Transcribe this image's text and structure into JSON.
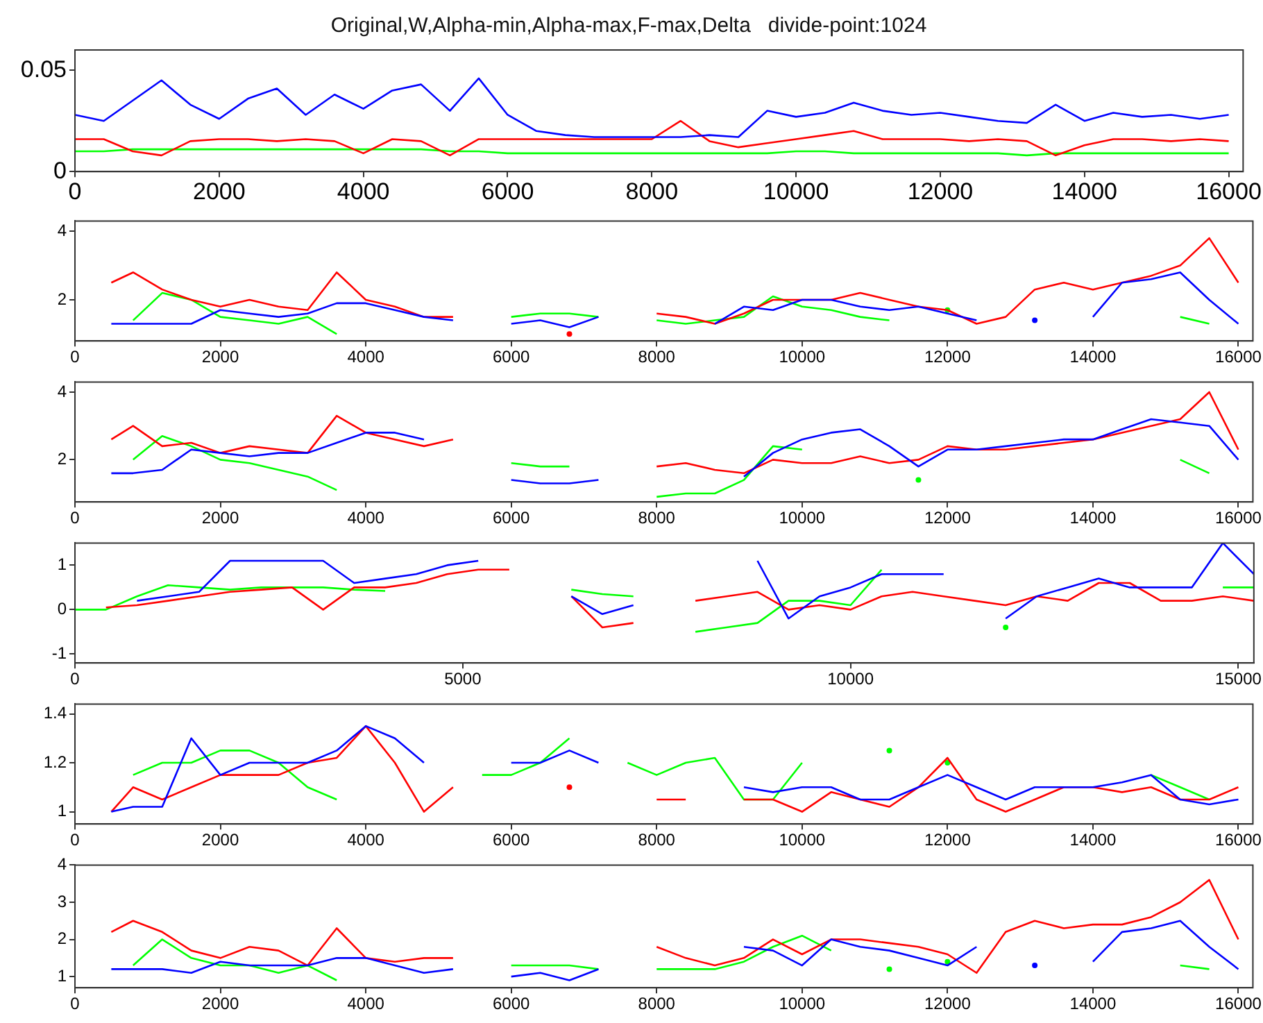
{
  "chart_data": [
    {
      "type": "line",
      "title": "Original,W,Alpha-min,Alpha-max,F-max,Delta   divide-point:1024",
      "x": [
        0,
        400,
        800,
        1200,
        1600,
        2000,
        2400,
        2800,
        3200,
        3600,
        4000,
        4400,
        4800,
        5200,
        5600,
        6000,
        6400,
        6800,
        7200,
        7600,
        8000,
        8400,
        8800,
        9200,
        9600,
        10000,
        10400,
        10800,
        11200,
        11600,
        12000,
        12400,
        12800,
        13200,
        13600,
        14000,
        14400,
        14800,
        15200,
        15600,
        16000
      ],
      "xlim": [
        0,
        16200
      ],
      "xticks": [
        0,
        2000,
        4000,
        6000,
        8000,
        10000,
        12000,
        14000,
        16000
      ],
      "ylim": [
        0,
        0.06
      ],
      "yticks": [
        0,
        0.05
      ],
      "grid": false,
      "legend": false,
      "series": [
        {
          "color": "#0000ff",
          "values": [
            0.028,
            0.025,
            0.035,
            0.045,
            0.033,
            0.026,
            0.036,
            0.041,
            0.028,
            0.038,
            0.031,
            0.04,
            0.043,
            0.03,
            0.046,
            0.028,
            0.02,
            0.018,
            0.017,
            0.017,
            0.017,
            0.017,
            0.018,
            0.017,
            0.03,
            0.027,
            0.029,
            0.034,
            0.03,
            0.028,
            0.029,
            0.027,
            0.025,
            0.024,
            0.033,
            0.025,
            0.029,
            0.027,
            0.028,
            0.026,
            0.028
          ]
        },
        {
          "color": "#ff0000",
          "values": [
            0.016,
            0.016,
            0.01,
            0.008,
            0.015,
            0.016,
            0.016,
            0.015,
            0.016,
            0.015,
            0.009,
            0.016,
            0.015,
            0.008,
            0.016,
            0.016,
            0.016,
            0.016,
            0.016,
            0.016,
            0.016,
            0.025,
            0.015,
            0.012,
            0.014,
            0.016,
            0.018,
            0.02,
            0.016,
            0.016,
            0.016,
            0.015,
            0.016,
            0.015,
            0.008,
            0.013,
            0.016,
            0.016,
            0.015,
            0.016,
            0.015
          ]
        },
        {
          "color": "#00ff00",
          "values": [
            0.01,
            0.01,
            0.011,
            0.011,
            0.011,
            0.011,
            0.011,
            0.011,
            0.011,
            0.011,
            0.011,
            0.011,
            0.011,
            0.01,
            0.01,
            0.009,
            0.009,
            0.009,
            0.009,
            0.009,
            0.009,
            0.009,
            0.009,
            0.009,
            0.009,
            0.01,
            0.01,
            0.009,
            0.009,
            0.009,
            0.009,
            0.009,
            0.009,
            0.008,
            0.009,
            0.009,
            0.009,
            0.009,
            0.009,
            0.009,
            0.009
          ]
        }
      ]
    },
    {
      "type": "line",
      "x": [
        500,
        800,
        1200,
        1600,
        2000,
        2400,
        2800,
        3200,
        3600,
        4000,
        4400,
        4800,
        5200,
        5600,
        6000,
        6400,
        6800,
        7200,
        7600,
        8000,
        8400,
        8800,
        9200,
        9600,
        10000,
        10400,
        10800,
        11200,
        11600,
        12000,
        12400,
        12800,
        13200,
        13600,
        14000,
        14400,
        14800,
        15200,
        15600,
        16000
      ],
      "xlim": [
        0,
        16200
      ],
      "xticks": [
        0,
        2000,
        4000,
        6000,
        8000,
        10000,
        12000,
        14000,
        16000
      ],
      "ylim": [
        0.8,
        4.3
      ],
      "yticks": [
        2,
        4
      ],
      "grid": false,
      "legend": false,
      "series": [
        {
          "color": "#0000ff",
          "values": [
            1.3,
            1.3,
            1.3,
            1.3,
            1.7,
            1.6,
            1.5,
            1.6,
            1.9,
            1.9,
            1.7,
            1.5,
            1.4,
            null,
            1.3,
            1.4,
            1.2,
            1.5,
            null,
            null,
            null,
            1.3,
            1.8,
            1.7,
            2.0,
            2.0,
            1.8,
            1.7,
            1.8,
            1.6,
            1.4,
            null,
            1.4,
            null,
            1.5,
            2.5,
            2.6,
            2.8,
            2.0,
            1.3
          ]
        },
        {
          "color": "#ff0000",
          "values": [
            2.5,
            2.8,
            2.3,
            2.0,
            1.8,
            2.0,
            1.8,
            1.7,
            2.8,
            2.0,
            1.8,
            1.5,
            1.5,
            null,
            null,
            null,
            1.0,
            null,
            null,
            1.6,
            1.5,
            1.3,
            1.6,
            2.0,
            2.0,
            2.0,
            2.2,
            2.0,
            1.8,
            1.7,
            1.3,
            1.5,
            2.3,
            2.5,
            2.3,
            2.5,
            2.7,
            3.0,
            3.8,
            2.5
          ]
        },
        {
          "color": "#00ff00",
          "values": [
            null,
            1.4,
            2.2,
            2.0,
            1.5,
            1.4,
            1.3,
            1.5,
            1.0,
            null,
            null,
            null,
            null,
            null,
            1.5,
            1.6,
            1.6,
            1.5,
            null,
            1.4,
            1.3,
            1.4,
            1.5,
            2.1,
            1.8,
            1.7,
            1.5,
            1.4,
            null,
            1.7,
            null,
            null,
            null,
            null,
            null,
            null,
            null,
            1.5,
            1.3,
            null
          ]
        }
      ]
    },
    {
      "type": "line",
      "x": [
        500,
        800,
        1200,
        1600,
        2000,
        2400,
        2800,
        3200,
        3600,
        4000,
        4400,
        4800,
        5200,
        5600,
        6000,
        6400,
        6800,
        7200,
        7600,
        8000,
        8400,
        8800,
        9200,
        9600,
        10000,
        10400,
        10800,
        11200,
        11600,
        12000,
        12400,
        12800,
        13200,
        13600,
        14000,
        14400,
        14800,
        15200,
        15600,
        16000
      ],
      "xlim": [
        0,
        16200
      ],
      "xticks": [
        0,
        2000,
        4000,
        6000,
        8000,
        10000,
        12000,
        14000,
        16000
      ],
      "ylim": [
        0.75,
        4.3
      ],
      "yticks": [
        2,
        4
      ],
      "grid": false,
      "legend": false,
      "series": [
        {
          "color": "#0000ff",
          "values": [
            1.6,
            1.6,
            1.7,
            2.3,
            2.2,
            2.1,
            2.2,
            2.2,
            2.5,
            2.8,
            2.8,
            2.6,
            null,
            null,
            1.4,
            1.3,
            1.3,
            1.4,
            null,
            null,
            null,
            null,
            1.5,
            2.2,
            2.6,
            2.8,
            2.9,
            2.4,
            1.8,
            2.3,
            2.3,
            2.4,
            2.5,
            2.6,
            2.6,
            2.9,
            3.2,
            3.1,
            3.0,
            2.0
          ]
        },
        {
          "color": "#ff0000",
          "values": [
            2.6,
            3.0,
            2.4,
            2.5,
            2.2,
            2.4,
            2.3,
            2.2,
            3.3,
            2.8,
            2.6,
            2.4,
            2.6,
            null,
            null,
            null,
            null,
            null,
            null,
            1.8,
            1.9,
            1.7,
            1.6,
            2.0,
            1.9,
            1.9,
            2.1,
            1.9,
            2.0,
            2.4,
            2.3,
            2.3,
            2.4,
            2.5,
            2.6,
            2.8,
            3.0,
            3.2,
            4.0,
            2.3
          ]
        },
        {
          "color": "#00ff00",
          "values": [
            null,
            2.0,
            2.7,
            2.4,
            2.0,
            1.9,
            1.7,
            1.5,
            1.1,
            null,
            null,
            null,
            null,
            null,
            1.9,
            1.8,
            1.8,
            null,
            null,
            0.9,
            1.0,
            1.0,
            1.4,
            2.4,
            2.3,
            null,
            null,
            null,
            1.4,
            null,
            null,
            null,
            null,
            null,
            null,
            null,
            null,
            2.0,
            1.6,
            null
          ]
        }
      ]
    },
    {
      "type": "line",
      "x": [
        0,
        400,
        800,
        1200,
        1600,
        2000,
        2400,
        2800,
        3200,
        3600,
        4000,
        4400,
        4800,
        5200,
        5600,
        6000,
        6400,
        6800,
        7200,
        7600,
        8000,
        8400,
        8800,
        9200,
        9600,
        10000,
        10400,
        10800,
        11200,
        11600,
        12000,
        12400,
        12800,
        13200,
        13600,
        14000,
        14400,
        14800,
        15200
      ],
      "xlim": [
        0,
        15200
      ],
      "xticks": [
        0,
        5000,
        10000,
        15000
      ],
      "ylim": [
        -1.2,
        1.5
      ],
      "yticks": [
        -1,
        0,
        1
      ],
      "grid": false,
      "legend": false,
      "series": [
        {
          "color": "#0000ff",
          "values": [
            null,
            null,
            0.2,
            0.3,
            0.4,
            1.1,
            1.1,
            1.1,
            1.1,
            0.6,
            0.7,
            0.8,
            1.0,
            1.1,
            null,
            null,
            0.3,
            -0.1,
            0.1,
            null,
            null,
            null,
            1.1,
            -0.2,
            0.3,
            0.5,
            0.8,
            0.8,
            0.8,
            null,
            -0.2,
            0.3,
            0.5,
            0.7,
            0.5,
            0.5,
            0.5,
            1.5,
            0.8
          ]
        },
        {
          "color": "#ff0000",
          "values": [
            null,
            0.05,
            0.1,
            0.2,
            0.3,
            0.4,
            0.45,
            0.5,
            0.0,
            0.5,
            0.5,
            0.6,
            0.8,
            0.9,
            0.9,
            null,
            0.3,
            -0.4,
            -0.3,
            null,
            0.2,
            0.3,
            0.4,
            0.0,
            0.1,
            0.0,
            0.3,
            0.4,
            0.3,
            0.2,
            0.1,
            0.3,
            0.2,
            0.6,
            0.6,
            0.2,
            0.2,
            0.3,
            0.2
          ]
        },
        {
          "color": "#00ff00",
          "values": [
            0,
            0.0,
            0.3,
            0.55,
            0.5,
            0.45,
            0.5,
            0.5,
            0.5,
            0.45,
            0.42,
            null,
            null,
            null,
            null,
            null,
            0.45,
            0.35,
            0.3,
            null,
            -0.5,
            -0.4,
            -0.3,
            0.2,
            0.2,
            0.1,
            0.9,
            null,
            null,
            null,
            -0.4,
            null,
            null,
            null,
            null,
            null,
            null,
            0.5,
            0.5
          ]
        }
      ]
    },
    {
      "type": "line",
      "x": [
        500,
        800,
        1200,
        1600,
        2000,
        2400,
        2800,
        3200,
        3600,
        4000,
        4400,
        4800,
        5200,
        5600,
        6000,
        6400,
        6800,
        7200,
        7600,
        8000,
        8400,
        8800,
        9200,
        9600,
        10000,
        10400,
        10800,
        11200,
        11600,
        12000,
        12400,
        12800,
        13200,
        13600,
        14000,
        14400,
        14800,
        15200,
        15600,
        16000
      ],
      "xlim": [
        0,
        16200
      ],
      "xticks": [
        0,
        2000,
        4000,
        6000,
        8000,
        10000,
        12000,
        14000,
        16000
      ],
      "ylim": [
        0.95,
        1.44
      ],
      "yticks": [
        1,
        1.2,
        1.4
      ],
      "grid": false,
      "legend": false,
      "series": [
        {
          "color": "#0000ff",
          "values": [
            1.0,
            1.02,
            1.02,
            1.3,
            1.15,
            1.2,
            1.2,
            1.2,
            1.25,
            1.35,
            1.3,
            1.2,
            null,
            null,
            1.2,
            1.2,
            1.25,
            1.2,
            null,
            null,
            null,
            null,
            1.1,
            1.08,
            1.1,
            1.1,
            1.05,
            1.05,
            1.1,
            1.15,
            1.1,
            1.05,
            1.1,
            1.1,
            1.1,
            1.12,
            1.15,
            1.05,
            1.03,
            1.05
          ]
        },
        {
          "color": "#ff0000",
          "values": [
            1.0,
            1.1,
            1.05,
            1.1,
            1.15,
            1.15,
            1.15,
            1.2,
            1.22,
            1.35,
            1.2,
            1.0,
            1.1,
            null,
            null,
            null,
            1.1,
            null,
            null,
            1.05,
            1.05,
            null,
            1.05,
            1.05,
            1.0,
            1.08,
            1.05,
            1.02,
            1.1,
            1.22,
            1.05,
            1.0,
            1.05,
            1.1,
            1.1,
            1.08,
            1.1,
            1.05,
            1.05,
            1.1
          ]
        },
        {
          "color": "#00ff00",
          "values": [
            null,
            1.15,
            1.2,
            1.2,
            1.25,
            1.25,
            1.2,
            1.1,
            1.05,
            null,
            null,
            null,
            null,
            1.15,
            1.15,
            1.2,
            1.3,
            null,
            1.2,
            1.15,
            1.2,
            1.22,
            1.05,
            1.05,
            1.2,
            null,
            null,
            1.25,
            null,
            1.2,
            null,
            null,
            null,
            null,
            null,
            null,
            1.15,
            1.1,
            1.05,
            null
          ]
        }
      ]
    },
    {
      "type": "line",
      "x": [
        500,
        800,
        1200,
        1600,
        2000,
        2400,
        2800,
        3200,
        3600,
        4000,
        4400,
        4800,
        5200,
        5600,
        6000,
        6400,
        6800,
        7200,
        7600,
        8000,
        8400,
        8800,
        9200,
        9600,
        10000,
        10400,
        10800,
        11200,
        11600,
        12000,
        12400,
        12800,
        13200,
        13600,
        14000,
        14400,
        14800,
        15200,
        15600,
        16000
      ],
      "xlim": [
        0,
        16200
      ],
      "xticks": [
        0,
        2000,
        4000,
        6000,
        8000,
        10000,
        12000,
        14000,
        16000
      ],
      "ylim": [
        0.7,
        4
      ],
      "yticks": [
        1,
        2,
        3,
        4
      ],
      "grid": false,
      "legend": false,
      "series": [
        {
          "color": "#0000ff",
          "values": [
            1.2,
            1.2,
            1.2,
            1.1,
            1.4,
            1.3,
            1.3,
            1.3,
            1.5,
            1.5,
            1.3,
            1.1,
            1.2,
            null,
            1.0,
            1.1,
            0.9,
            1.2,
            null,
            null,
            null,
            null,
            1.8,
            1.7,
            1.3,
            2.0,
            1.8,
            1.7,
            1.5,
            1.3,
            1.8,
            null,
            1.3,
            null,
            1.4,
            2.2,
            2.3,
            2.5,
            1.8,
            1.2
          ]
        },
        {
          "color": "#ff0000",
          "values": [
            2.2,
            2.5,
            2.2,
            1.7,
            1.5,
            1.8,
            1.7,
            1.3,
            2.3,
            1.5,
            1.4,
            1.5,
            1.5,
            null,
            null,
            null,
            null,
            null,
            null,
            1.8,
            1.5,
            1.3,
            1.5,
            2.0,
            1.6,
            2.0,
            2.0,
            1.9,
            1.8,
            1.6,
            1.1,
            2.2,
            2.5,
            2.3,
            2.4,
            2.4,
            2.6,
            3.0,
            3.6,
            2.0
          ]
        },
        {
          "color": "#00ff00",
          "values": [
            null,
            1.3,
            2.0,
            1.5,
            1.3,
            1.3,
            1.1,
            1.3,
            0.9,
            null,
            null,
            null,
            null,
            null,
            1.3,
            1.3,
            1.3,
            1.2,
            null,
            1.2,
            1.2,
            1.2,
            1.4,
            1.8,
            2.1,
            1.7,
            null,
            1.2,
            null,
            1.4,
            null,
            null,
            null,
            null,
            null,
            null,
            null,
            1.3,
            1.2,
            null
          ]
        }
      ]
    }
  ]
}
